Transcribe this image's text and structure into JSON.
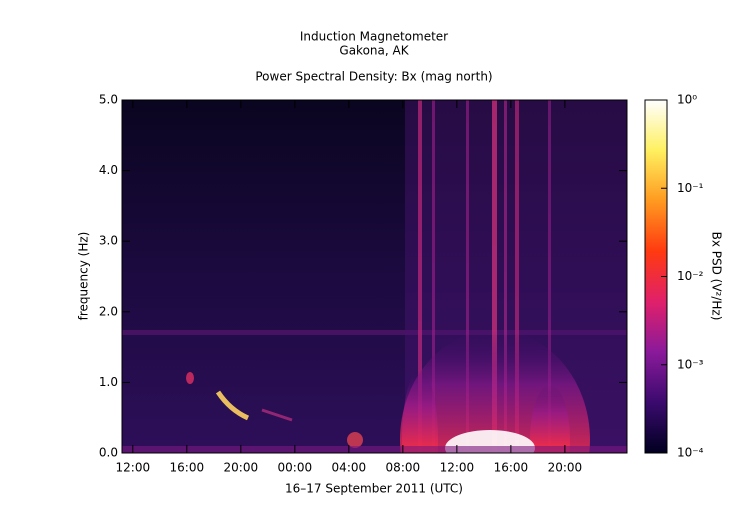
{
  "chart_data": {
    "type": "spectrogram",
    "title": "Induction Magnetometer",
    "subtitle": "Gakona, AK",
    "plot_title": "Power Spectral Density: Bx (mag north)",
    "xlabel": "16–17 September 2011 (UTC)",
    "ylabel": "frequency (Hz)",
    "xlim": [
      11.2,
      48.6
    ],
    "xticks": [
      {
        "value": 12,
        "label": "12:00"
      },
      {
        "value": 16,
        "label": "16:00"
      },
      {
        "value": 20,
        "label": "20:00"
      },
      {
        "value": 24,
        "label": "00:00"
      },
      {
        "value": 28,
        "label": "04:00"
      },
      {
        "value": 32,
        "label": "08:00"
      },
      {
        "value": 36,
        "label": "12:00"
      },
      {
        "value": 40,
        "label": "16:00"
      },
      {
        "value": 44,
        "label": "20:00"
      }
    ],
    "ylim": [
      0,
      5
    ],
    "yticks": [
      {
        "value": 0,
        "label": "0.0"
      },
      {
        "value": 1,
        "label": "1.0"
      },
      {
        "value": 2,
        "label": "2.0"
      },
      {
        "value": 3,
        "label": "3.0"
      },
      {
        "value": 4,
        "label": "4.0"
      },
      {
        "value": 5,
        "label": "5.0"
      }
    ],
    "colorbar": {
      "label": "Bx PSD (V²/Hz)",
      "scale": "log",
      "lim": [
        0.0001,
        1
      ],
      "ticks": [
        {
          "value": 0.0001,
          "label": "10⁻⁴"
        },
        {
          "value": 0.001,
          "label": "10⁻³"
        },
        {
          "value": 0.01,
          "label": "10⁻²"
        },
        {
          "value": 0.1,
          "label": "10⁻¹"
        },
        {
          "value": 1,
          "label": "10⁰"
        }
      ],
      "colors": [
        "#000020",
        "#3a0a6e",
        "#8a1a9a",
        "#e0206a",
        "#ff3a10",
        "#ff9a20",
        "#fff060",
        "#ffffff"
      ]
    }
  }
}
